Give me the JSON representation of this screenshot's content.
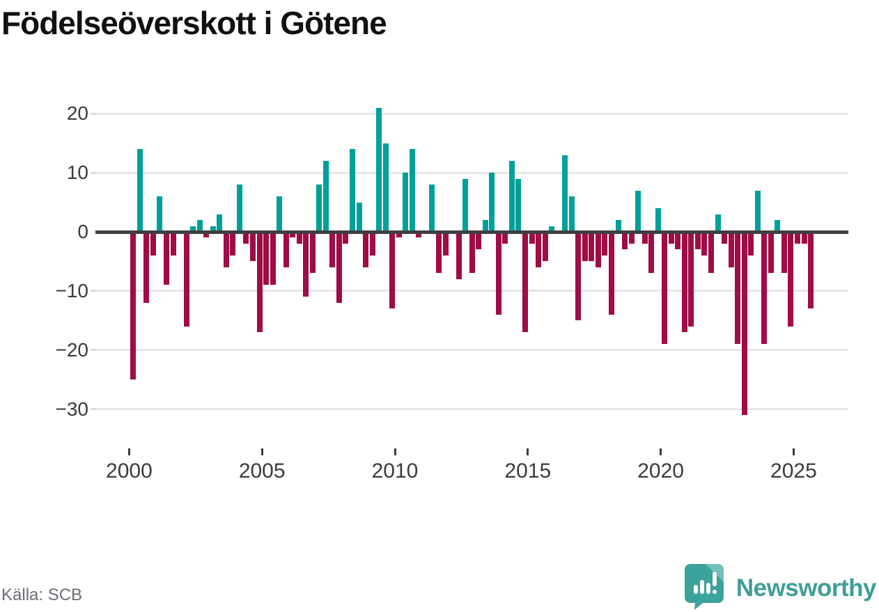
{
  "title": "Födelseöverskott i Götene",
  "source_label": "Källa: SCB",
  "brand": {
    "name": "Newsworthy",
    "logo": "newsworthy-speech-bubble-barchart-icon"
  },
  "colors": {
    "positive_bar": "#00a09a",
    "negative_bar": "#a00c45",
    "zero_axis": "#3f3f3f",
    "gridline": "#e6e6e6",
    "axis_label": "#3b3b3b",
    "source_text": "#6c6c75",
    "brand_teal": "#3f9d98",
    "title_text": "#111111"
  },
  "chart_data": {
    "type": "bar",
    "title": "Födelseöverskott i Götene",
    "xlabel": "",
    "ylabel": "",
    "grid": "horizontal",
    "legend": "none",
    "frequency": "quarterly",
    "x_start": "2000-Q1",
    "x_end": "2025-Q3",
    "ylim": [
      -33,
      23
    ],
    "y_ticks": [
      20,
      10,
      0,
      -10,
      -20,
      -30
    ],
    "y_tick_labels": [
      "20",
      "10",
      "0",
      "−10",
      "−20",
      "−30"
    ],
    "x_tick_labels": [
      "2000",
      "2005",
      "2010",
      "2015",
      "2020",
      "2025"
    ],
    "values": [
      -25,
      14,
      -12,
      -4,
      6,
      -9,
      -4,
      0,
      -16,
      1,
      2,
      -1,
      1,
      3,
      -6,
      -4,
      8,
      -2,
      -5,
      -17,
      -9,
      -9,
      6,
      -6,
      -1,
      -2,
      -11,
      -7,
      8,
      12,
      -6,
      -12,
      -2,
      14,
      5,
      -6,
      -4,
      21,
      15,
      -13,
      -1,
      10,
      14,
      -1,
      0,
      8,
      -7,
      -4,
      0,
      -8,
      9,
      -7,
      -3,
      2,
      10,
      -14,
      -2,
      12,
      9,
      -17,
      -2,
      -6,
      -5,
      1,
      0,
      13,
      6,
      -15,
      -5,
      -5,
      -6,
      -4,
      -14,
      2,
      -3,
      -2,
      7,
      -2,
      -7,
      4,
      -19,
      -2,
      -3,
      -17,
      -16,
      -3,
      -4,
      -7,
      3,
      -2,
      -6,
      -19,
      -31,
      -4,
      7,
      -19,
      -7,
      2,
      -7,
      -16,
      -2,
      -2,
      -13
    ]
  }
}
